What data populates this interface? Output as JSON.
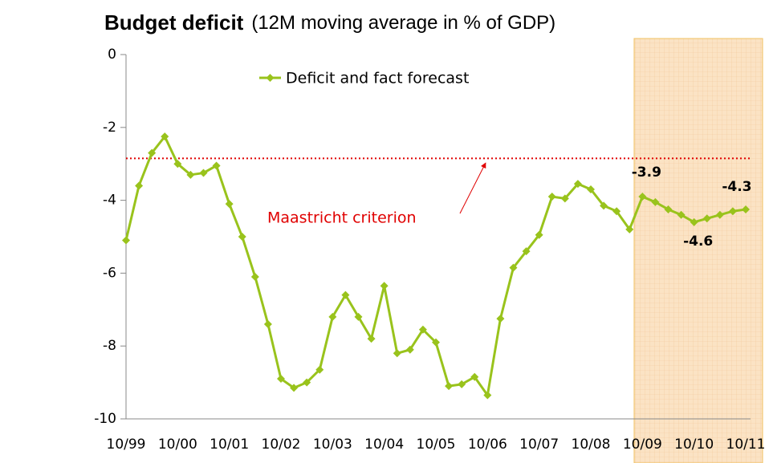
{
  "chart_data": {
    "type": "line",
    "title": "Budget deficit",
    "subtitle": "(12M moving average in % of GDP)",
    "categories": [
      "10/99",
      null,
      null,
      null,
      "10/00",
      null,
      null,
      null,
      "10/01",
      null,
      null,
      null,
      "10/02",
      null,
      null,
      null,
      "10/03",
      null,
      null,
      null,
      "10/04",
      null,
      null,
      null,
      "10/05",
      null,
      null,
      null,
      "10/06",
      null,
      null,
      null,
      "10/07",
      null,
      null,
      null,
      "10/08",
      null,
      null,
      null,
      "10/09",
      null,
      null,
      null,
      "10/10",
      null,
      null,
      null,
      "10/11"
    ],
    "series": [
      {
        "name": "Deficit and fact forecast",
        "color": "#99c31c",
        "values": [
          -5.1,
          -3.6,
          -2.7,
          -2.25,
          -3.0,
          -3.3,
          -3.25,
          -3.05,
          -4.1,
          -5.0,
          -6.1,
          -7.4,
          -8.9,
          -9.15,
          -9.0,
          -8.65,
          -7.2,
          -6.6,
          -7.2,
          -7.8,
          -6.35,
          -8.2,
          -8.1,
          -7.55,
          -7.9,
          -9.1,
          -9.05,
          -8.85,
          -9.35,
          -7.25,
          -5.85,
          -5.4,
          -4.95,
          -3.9,
          -3.95,
          -3.55,
          -3.7,
          -4.15,
          -4.3,
          -4.8,
          -3.9,
          -4.05,
          -4.25,
          -4.4,
          -4.6,
          -4.5,
          -4.4,
          -4.3,
          -4.25
        ],
        "value_labels": [
          null,
          null,
          null,
          null,
          null,
          null,
          null,
          null,
          null,
          null,
          null,
          null,
          null,
          null,
          null,
          null,
          null,
          null,
          null,
          null,
          null,
          null,
          null,
          null,
          null,
          null,
          null,
          null,
          null,
          null,
          null,
          null,
          null,
          null,
          null,
          null,
          null,
          null,
          null,
          null,
          "-3.9",
          null,
          null,
          null,
          "-4.6",
          null,
          null,
          "-4.3",
          null
        ]
      }
    ],
    "ylim": [
      -10,
      0
    ],
    "yticks": [
      0,
      -2,
      -4,
      -6,
      -8,
      -10
    ],
    "reference_line": {
      "value": -2.85,
      "color": "#e00000"
    },
    "annotation": "Maastricht criterion"
  }
}
